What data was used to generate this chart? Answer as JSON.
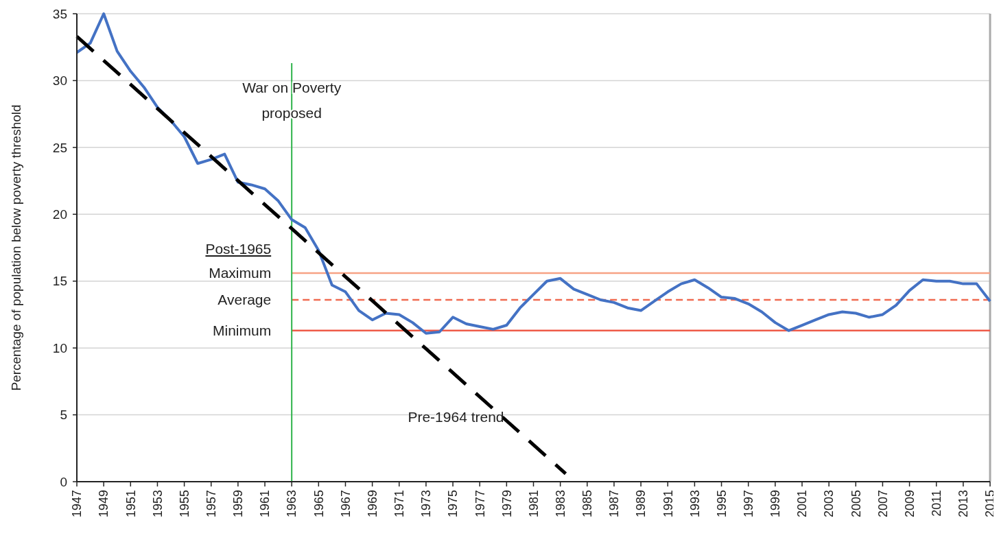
{
  "chart_data": {
    "type": "line",
    "ylabel": "Percentage of population below poverty threshold",
    "x": [
      1947,
      1948,
      1949,
      1950,
      1951,
      1952,
      1953,
      1954,
      1955,
      1956,
      1957,
      1958,
      1959,
      1960,
      1961,
      1962,
      1963,
      1964,
      1965,
      1966,
      1967,
      1968,
      1969,
      1970,
      1971,
      1972,
      1973,
      1974,
      1975,
      1976,
      1977,
      1978,
      1979,
      1980,
      1981,
      1982,
      1983,
      1984,
      1985,
      1986,
      1987,
      1988,
      1989,
      1990,
      1991,
      1992,
      1993,
      1994,
      1995,
      1996,
      1997,
      1998,
      1999,
      2000,
      2001,
      2002,
      2003,
      2004,
      2005,
      2006,
      2007,
      2008,
      2009,
      2010,
      2011,
      2012,
      2013,
      2014,
      2015
    ],
    "series": [
      {
        "color": "#4472c4",
        "values": [
          32.1,
          32.8,
          35.0,
          32.2,
          30.7,
          29.5,
          28.0,
          27.0,
          25.8,
          23.8,
          24.1,
          24.5,
          22.4,
          22.2,
          21.9,
          21.0,
          19.6,
          19.0,
          17.3,
          14.7,
          14.2,
          12.8,
          12.1,
          12.6,
          12.5,
          11.9,
          11.1,
          11.2,
          12.3,
          11.8,
          11.6,
          11.4,
          11.7,
          13.0,
          14.0,
          15.0,
          15.2,
          14.4,
          14.0,
          13.6,
          13.4,
          13.0,
          12.8,
          13.5,
          14.2,
          14.8,
          15.1,
          14.5,
          13.8,
          13.7,
          13.3,
          12.7,
          11.9,
          11.3,
          11.7,
          12.1,
          12.5,
          12.7,
          12.6,
          12.3,
          12.5,
          13.2,
          14.3,
          15.1,
          15.0,
          15.0,
          14.8,
          14.8,
          13.5
        ]
      },
      {
        "name": "Pre-1964 trend",
        "type": "line",
        "color": "#000000",
        "line_style": "dashed",
        "x": [
          1947,
          1983.4
        ],
        "values": [
          33.3,
          0.6
        ]
      }
    ],
    "xlim": [
      1947,
      2015
    ],
    "xticks": [
      1947,
      1949,
      1951,
      1953,
      1955,
      1957,
      1959,
      1961,
      1963,
      1965,
      1967,
      1969,
      1971,
      1973,
      1975,
      1977,
      1979,
      1981,
      1983,
      1985,
      1987,
      1989,
      1991,
      1993,
      1995,
      1997,
      1999,
      2001,
      2003,
      2005,
      2007,
      2009,
      2011,
      2013,
      2015
    ],
    "ylim": [
      0,
      35
    ],
    "yticks": [
      0,
      5,
      10,
      15,
      20,
      25,
      30,
      35
    ],
    "grid": "y",
    "ref_lines": [
      {
        "axis": "x",
        "value": 1963,
        "label": "War on Poverty proposed",
        "color": "#2db34a"
      },
      {
        "axis": "y",
        "value": 15.6,
        "label": "Maximum",
        "color": "#f7a285"
      },
      {
        "axis": "y",
        "value": 13.6,
        "label": "Average",
        "color": "#f06a50",
        "line_style": "dashed"
      },
      {
        "axis": "y",
        "value": 11.3,
        "label": "Minimum",
        "color": "#ef5a48"
      }
    ],
    "annotations": [
      "Post-1965"
    ]
  }
}
